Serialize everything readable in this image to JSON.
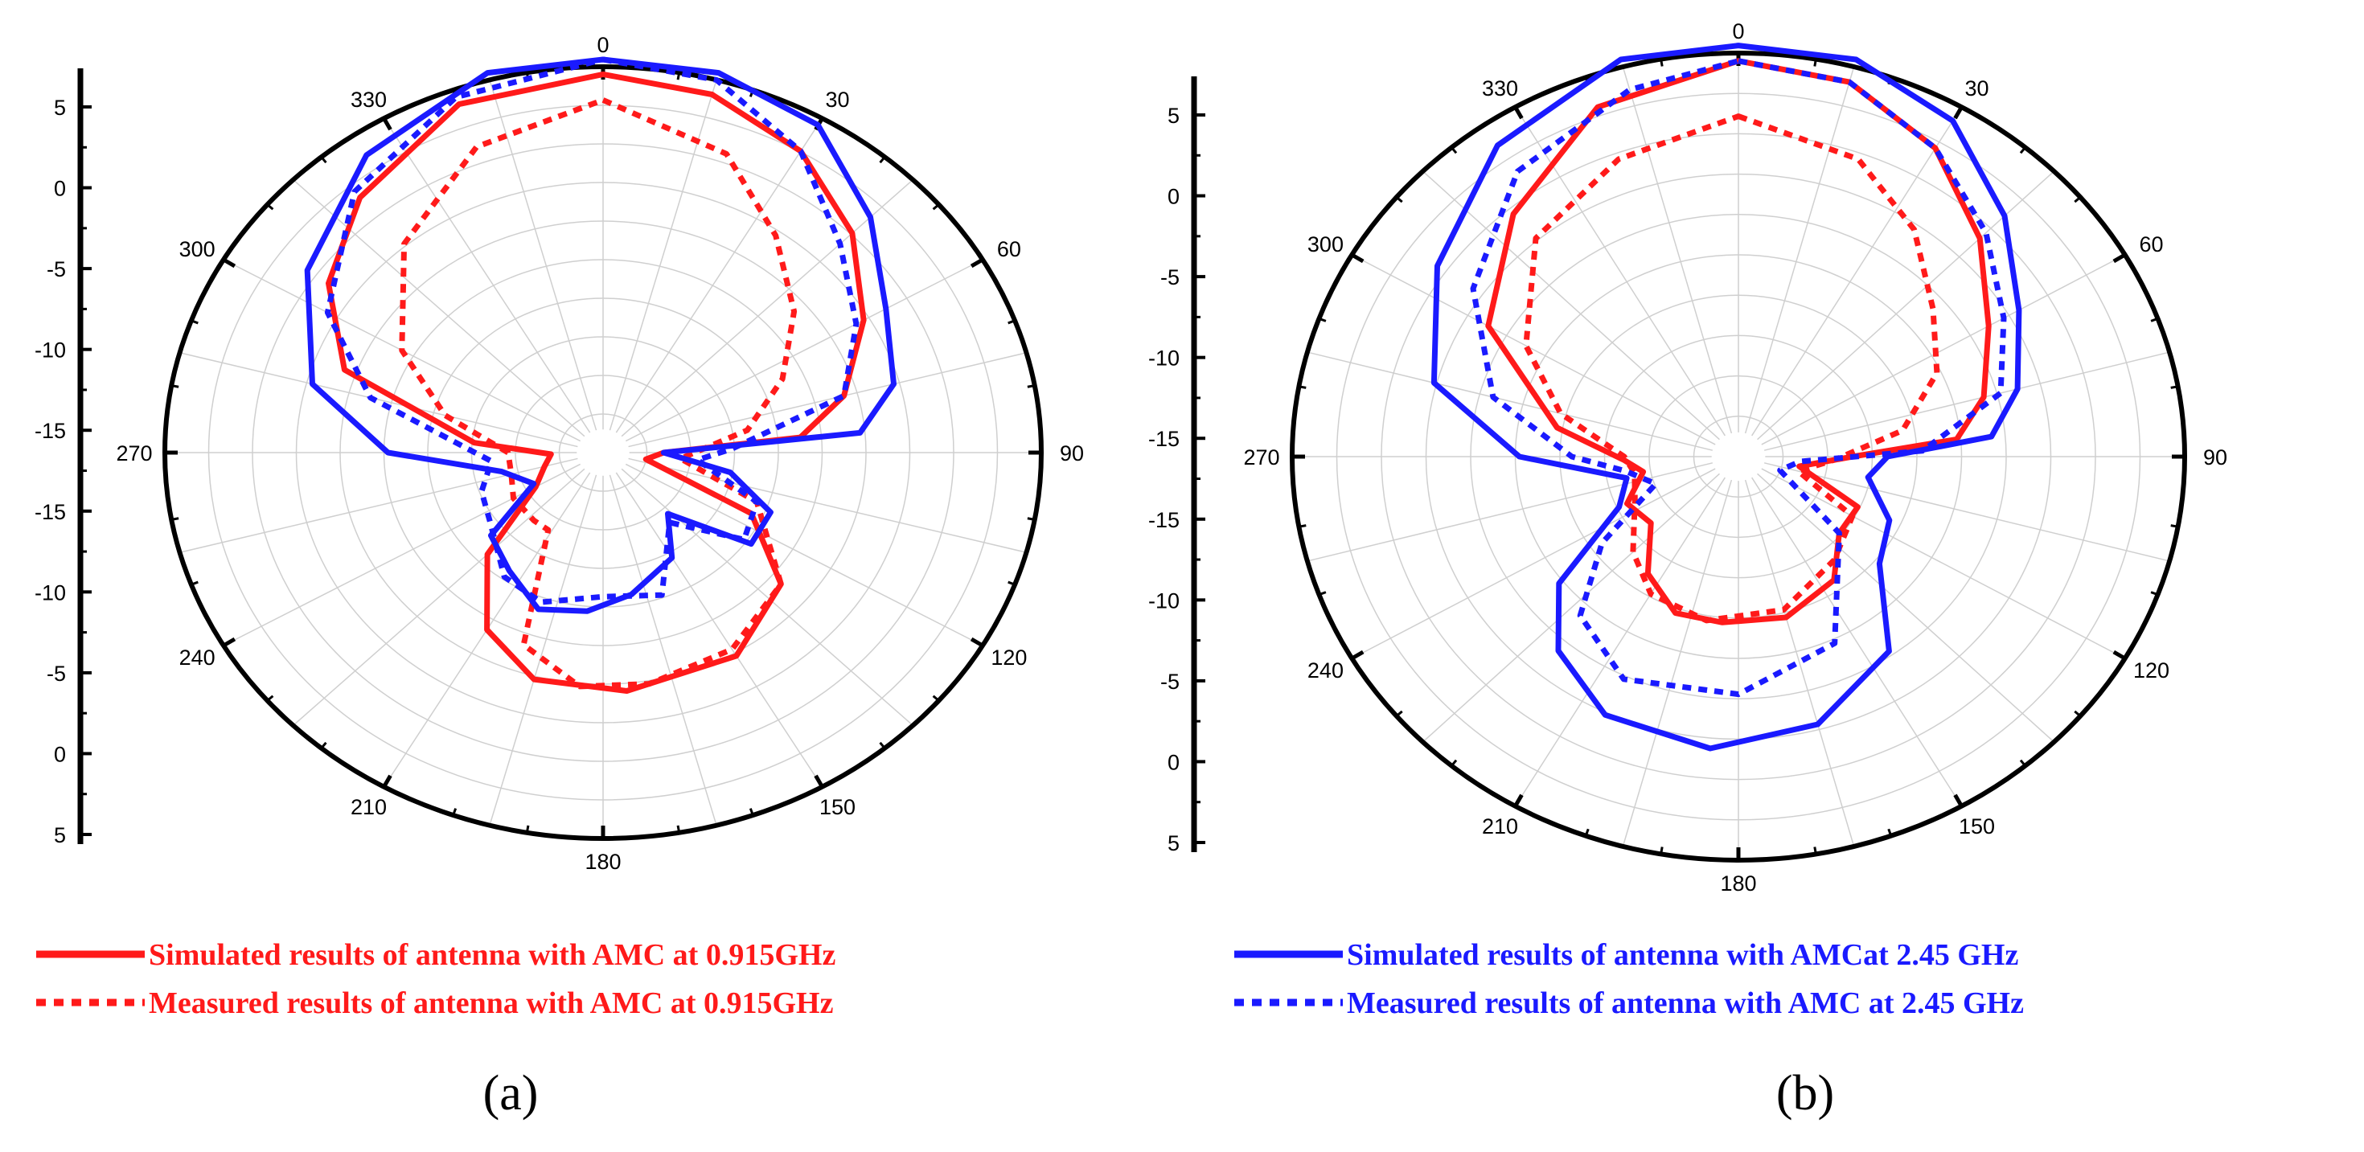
{
  "chart_data": [
    {
      "type": "polar-line",
      "panel_label": "(a)",
      "angle_ticks": [
        "0",
        "30",
        "60",
        "90",
        "120",
        "150",
        "180",
        "210",
        "240",
        "270",
        "300",
        "330"
      ],
      "radial_ticks": [
        "5",
        "0",
        "-5",
        "-10",
        "-15",
        "-15",
        "-10",
        "-5",
        "0",
        "5"
      ],
      "r_range_db": [
        -19,
        5
      ],
      "series": [
        {
          "name": "Simulated results of antenna with AMC at 0.915GHz",
          "color": "#ff1a1a",
          "style": "solid",
          "points": [
            [
              0,
              4.5
            ],
            [
              15,
              4.0
            ],
            [
              30,
              2.5
            ],
            [
              45,
              0
            ],
            [
              60,
              -3
            ],
            [
              75,
              -6
            ],
            [
              85,
              -9
            ],
            [
              90,
              -17
            ],
            [
              100,
              -18
            ],
            [
              115,
              -11
            ],
            [
              130,
              -7
            ],
            [
              150,
              -5
            ],
            [
              175,
              -4.7
            ],
            [
              195,
              -5
            ],
            [
              210,
              -7
            ],
            [
              225,
              -11
            ],
            [
              240,
              -16
            ],
            [
              255,
              -17
            ],
            [
              268,
              -17.5
            ],
            [
              275,
              -13
            ],
            [
              290,
              -4.5
            ],
            [
              305,
              -1
            ],
            [
              320,
              1.5
            ],
            [
              340,
              4
            ]
          ]
        },
        {
          "name": "Measured results of antenna with AMC at 0.915GHz",
          "color": "#ff1a1a",
          "style": "dotted",
          "points": [
            [
              0,
              2.8
            ],
            [
              20,
              0.5
            ],
            [
              35,
              -3
            ],
            [
              50,
              -6
            ],
            [
              65,
              -9
            ],
            [
              80,
              -12
            ],
            [
              95,
              -16
            ],
            [
              110,
              -11
            ],
            [
              130,
              -7
            ],
            [
              150,
              -5.5
            ],
            [
              170,
              -5
            ],
            [
              185,
              -5
            ],
            [
              200,
              -7
            ],
            [
              212,
              -14.5
            ],
            [
              222,
              -14.5
            ],
            [
              240,
              -14.5
            ],
            [
              255,
              -15
            ],
            [
              270,
              -15
            ],
            [
              285,
              -11
            ],
            [
              300,
              -7
            ],
            [
              320,
              -2.5
            ],
            [
              340,
              1
            ]
          ]
        },
        {
          "name": "Simulated results of antenna with AMC at 2.45 GHz",
          "color": "#1a1aff",
          "style": "solid",
          "points": [
            [
              0,
              6.5
            ],
            [
              15,
              6
            ],
            [
              30,
              4.5
            ],
            [
              45,
              1.5
            ],
            [
              60,
              -1.5
            ],
            [
              75,
              -3
            ],
            [
              85,
              -5.5
            ],
            [
              90,
              -17
            ],
            [
              100,
              -13
            ],
            [
              112,
              -10
            ],
            [
              125,
              -10
            ],
            [
              137,
              -15
            ],
            [
              150,
              -12.5
            ],
            [
              170,
              -11
            ],
            [
              185,
              -10
            ],
            [
              200,
              -9.5
            ],
            [
              215,
              -11
            ],
            [
              230,
              -12
            ],
            [
              243,
              -16
            ],
            [
              258,
              -14.5
            ],
            [
              270,
              -8
            ],
            [
              285,
              -3
            ],
            [
              305,
              0.5
            ],
            [
              325,
              3.5
            ],
            [
              345,
              6
            ]
          ]
        },
        {
          "name": "Measured results of antenna with AMC at 2.45 GHz",
          "color": "#1a1aff",
          "style": "dotted",
          "points": [
            [
              0,
              5.5
            ],
            [
              15,
              5
            ],
            [
              30,
              2.5
            ],
            [
              45,
              -1
            ],
            [
              60,
              -3.5
            ],
            [
              75,
              -6
            ],
            [
              88,
              -13
            ],
            [
              95,
              -15
            ],
            [
              110,
              -11
            ],
            [
              125,
              -10.5
            ],
            [
              140,
              -14.5
            ],
            [
              160,
              -10.5
            ],
            [
              180,
              -11
            ],
            [
              200,
              -10
            ],
            [
              215,
              -10.5
            ],
            [
              235,
              -12.5
            ],
            [
              250,
              -13
            ],
            [
              265,
              -14
            ],
            [
              285,
              -6.5
            ],
            [
              300,
              -2
            ],
            [
              320,
              2
            ],
            [
              340,
              4.5
            ]
          ]
        }
      ]
    },
    {
      "type": "polar-line",
      "panel_label": "(b)",
      "angle_ticks": [
        "0",
        "30",
        "60",
        "90",
        "120",
        "150",
        "180",
        "210",
        "240",
        "270",
        "300",
        "330"
      ],
      "radial_ticks": [
        "5",
        "0",
        "-5",
        "-10",
        "-15",
        "-15",
        "-10",
        "-5",
        "0",
        "5"
      ],
      "r_range_db": [
        -19,
        5
      ],
      "series": [
        {
          "name": "Simulated results of antenna with AMC at 0.915GHz",
          "color": "#ff1a1a",
          "style": "solid",
          "points": [
            [
              0,
              4.5
            ],
            [
              15,
              4
            ],
            [
              30,
              2
            ],
            [
              45,
              -1
            ],
            [
              60,
              -4
            ],
            [
              75,
              -6
            ],
            [
              85,
              -8
            ],
            [
              90,
              -14
            ],
            [
              100,
              -17
            ],
            [
              115,
              -13
            ],
            [
              130,
              -13
            ],
            [
              145,
              -11
            ],
            [
              165,
              -10
            ],
            [
              185,
              -10
            ],
            [
              200,
              -10
            ],
            [
              215,
              -11.5
            ],
            [
              230,
              -14
            ],
            [
              245,
              -13.5
            ],
            [
              260,
              -15
            ],
            [
              268,
              -14
            ],
            [
              280,
              -10
            ],
            [
              300,
              -4
            ],
            [
              320,
              -0.5
            ],
            [
              340,
              3
            ]
          ]
        },
        {
          "name": "Measured results of antenna with AMC at 0.915GHz",
          "color": "#ff1a1a",
          "style": "dotted",
          "points": [
            [
              0,
              1
            ],
            [
              20,
              -0.5
            ],
            [
              35,
              -3
            ],
            [
              50,
              -6
            ],
            [
              65,
              -8
            ],
            [
              80,
              -11
            ],
            [
              92,
              -15
            ],
            [
              105,
              -17
            ],
            [
              120,
              -13
            ],
            [
              140,
              -12
            ],
            [
              165,
              -10.5
            ],
            [
              190,
              -10
            ],
            [
              210,
              -10.5
            ],
            [
              225,
              -12
            ],
            [
              245,
              -14
            ],
            [
              260,
              -14.5
            ],
            [
              270,
              -14
            ],
            [
              285,
              -10
            ],
            [
              300,
              -6.5
            ],
            [
              320,
              -2.5
            ],
            [
              340,
              -0.5
            ]
          ]
        },
        {
          "name": "Simulated results of antenna with AMC at 2.45 GHz",
          "color": "#1a1aff",
          "style": "solid",
          "points": [
            [
              0,
              6.5
            ],
            [
              15,
              6
            ],
            [
              30,
              4
            ],
            [
              45,
              1
            ],
            [
              60,
              -2
            ],
            [
              75,
              -4
            ],
            [
              85,
              -6
            ],
            [
              90,
              -12
            ],
            [
              100,
              -13
            ],
            [
              115,
              -11
            ],
            [
              130,
              -10
            ],
            [
              145,
              -5.5
            ],
            [
              165,
              -3
            ],
            [
              185,
              -2
            ],
            [
              205,
              -2.5
            ],
            [
              220,
              -4.5
            ],
            [
              232,
              -7.5
            ],
            [
              245,
              -13
            ],
            [
              258,
              -14
            ],
            [
              270,
              -8
            ],
            [
              285,
              -2.5
            ],
            [
              305,
              0.5
            ],
            [
              325,
              3.5
            ],
            [
              345,
              6
            ]
          ]
        },
        {
          "name": "Measured results of antenna with AMC at 2.45 GHz",
          "color": "#1a1aff",
          "style": "dotted",
          "points": [
            [
              0,
              4.5
            ],
            [
              15,
              4
            ],
            [
              30,
              2
            ],
            [
              45,
              -0.5
            ],
            [
              60,
              -3
            ],
            [
              75,
              -5
            ],
            [
              88,
              -10
            ],
            [
              95,
              -17
            ],
            [
              110,
              -18
            ],
            [
              130,
              -13
            ],
            [
              155,
              -7.5
            ],
            [
              180,
              -5.5
            ],
            [
              205,
              -5
            ],
            [
              222,
              -7
            ],
            [
              235,
              -11
            ],
            [
              250,
              -15.5
            ],
            [
              262,
              -14
            ],
            [
              270,
              -11
            ],
            [
              285,
              -6
            ],
            [
              305,
              -2
            ],
            [
              325,
              1.5
            ],
            [
              345,
              3.5
            ]
          ]
        }
      ]
    }
  ],
  "legend": {
    "left": [
      {
        "label": "Simulated results of antenna with AMC at 0.915GHz",
        "color": "#ff1a1a",
        "style": "solid"
      },
      {
        "label": "Measured results of antenna with AMC at 0.915GHz",
        "color": "#ff1a1a",
        "style": "dotted"
      }
    ],
    "right": [
      {
        "label": "Simulated results of antenna with AMCat 2.45 GHz",
        "color": "#1a1aff",
        "style": "solid"
      },
      {
        "label": "Measured results of antenna with AMC at 2.45 GHz",
        "color": "#1a1aff",
        "style": "dotted"
      }
    ]
  }
}
